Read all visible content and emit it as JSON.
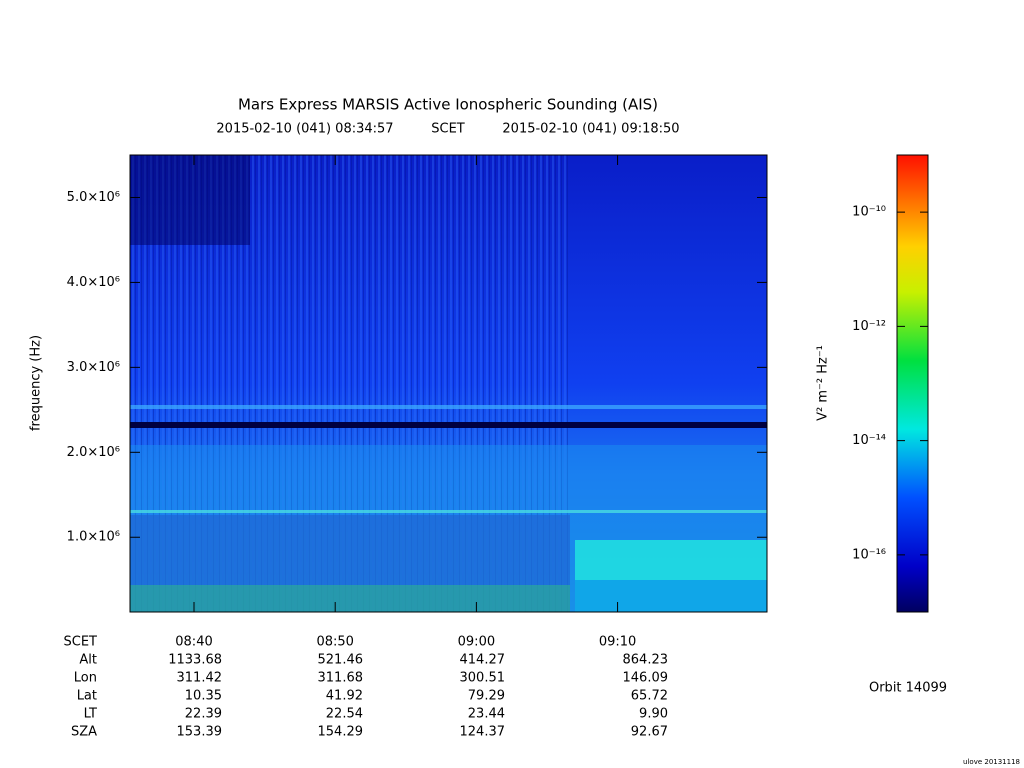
{
  "chart_data": {
    "type": "spectrogram",
    "title": "Mars Express MARSIS Active Ionospheric Sounding (AIS)",
    "start_time": "2015-02-10 (041) 08:34:57",
    "time_system": "SCET",
    "end_time": "2015-02-10 (041) 09:18:50",
    "y_label": "frequency (Hz)",
    "ylim": [
      120000,
      5500000
    ],
    "yticks": [
      {
        "value": 1000000,
        "label": "1.0×10⁶"
      },
      {
        "value": 2000000,
        "label": "2.0×10⁶"
      },
      {
        "value": 3000000,
        "label": "3.0×10⁶"
      },
      {
        "value": 4000000,
        "label": "4.0×10⁶"
      },
      {
        "value": 5000000,
        "label": "5.0×10⁶"
      }
    ],
    "xlim": [
      "08:35:28",
      "09:20:35"
    ],
    "xticks": [
      "08:40",
      "08:50",
      "09:00",
      "09:10"
    ],
    "colorbar_label": "V² m⁻² Hz⁻¹",
    "zlim": [
      1e-17,
      1e-09
    ],
    "zscale": "log",
    "zticks": [
      {
        "value": 1e-10,
        "label": "10⁻¹⁰"
      },
      {
        "value": 1e-12,
        "label": "10⁻¹²"
      },
      {
        "value": 1e-14,
        "label": "10⁻¹⁴"
      },
      {
        "value": 1e-16,
        "label": "10⁻¹⁶"
      }
    ],
    "ephemeris": {
      "time_label": "SCET",
      "rows": [
        {
          "name": "Alt",
          "values": [
            "1133.68",
            "521.46",
            "414.27",
            "864.23"
          ]
        },
        {
          "name": "Lon",
          "values": [
            "311.42",
            "311.68",
            "300.51",
            "146.09"
          ]
        },
        {
          "name": "Lat",
          "values": [
            "10.35",
            "41.92",
            "79.29",
            "65.72"
          ]
        },
        {
          "name": "LT",
          "values": [
            "22.39",
            "22.54",
            "23.44",
            "9.90"
          ]
        },
        {
          "name": "SZA",
          "values": [
            "153.39",
            "154.29",
            "124.37",
            "92.67"
          ]
        }
      ]
    },
    "orbit": "Orbit 14099",
    "credit": "ulove 20131118"
  }
}
